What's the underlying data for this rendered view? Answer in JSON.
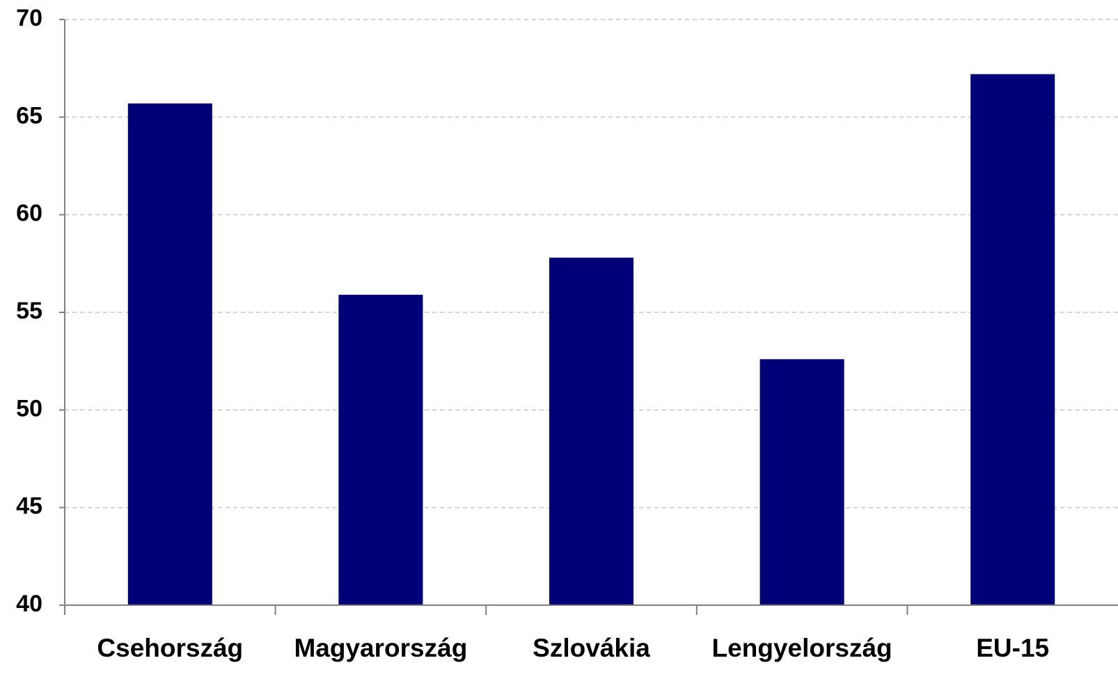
{
  "chart_data": {
    "type": "bar",
    "categories": [
      "Csehország",
      "Magyarország",
      "Szlovákia",
      "Lengyelország",
      "EU-15"
    ],
    "values": [
      65.7,
      55.9,
      57.8,
      52.6,
      67.2
    ],
    "color": "#000077",
    "ylim": [
      40,
      70
    ],
    "yticks": [
      40,
      45,
      50,
      55,
      60,
      65,
      70
    ],
    "grid": true
  }
}
